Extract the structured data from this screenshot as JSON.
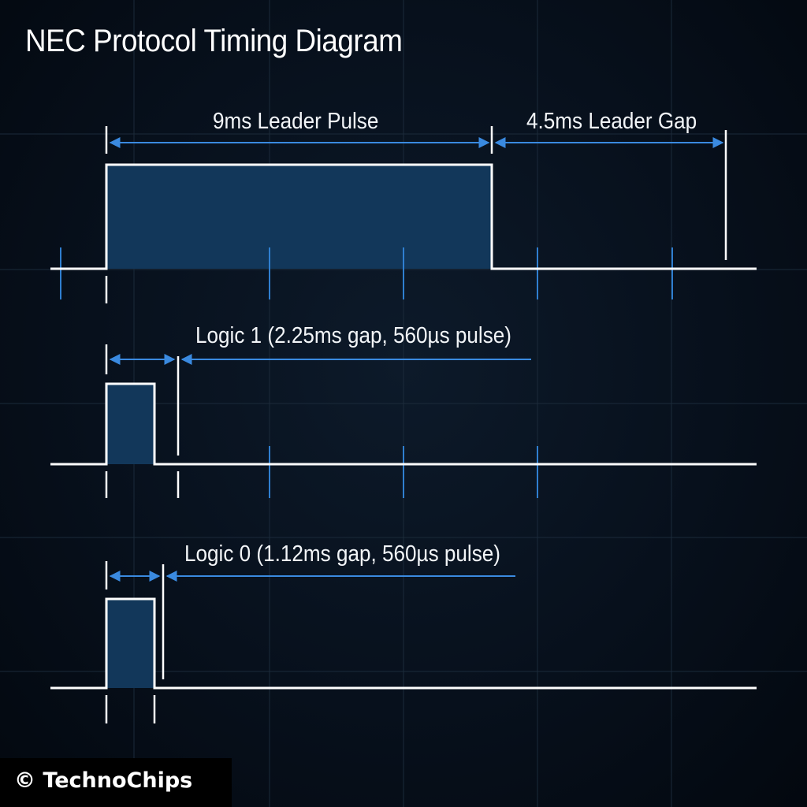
{
  "title": "NEC Protocol Timing Diagram",
  "labels": {
    "leader_pulse": "9ms Leader Pulse",
    "leader_gap": "4.5ms Leader Gap",
    "logic1": "Logic 1 (2.25ms gap, 560µs pulse)",
    "logic0": "Logic 0 (1.12ms gap, 560µs pulse)"
  },
  "copyright": "© TechnoChips",
  "colors": {
    "background": "#07101c",
    "signal": "#ffffff",
    "pulse_fill": "#12375a",
    "dimension": "#2f7fd0",
    "tick": "#2f7fd0",
    "grid": "#1b2a3a"
  }
}
